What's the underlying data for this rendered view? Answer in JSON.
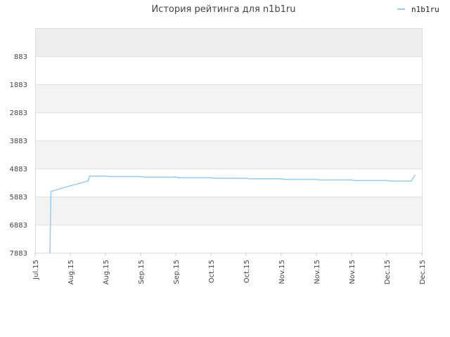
{
  "chart_data": {
    "type": "line",
    "title": "История рейтинга для n1b1ru",
    "xlabel": "",
    "ylabel": "",
    "y_inverted": true,
    "ylim": [
      7883,
      0
    ],
    "y_ticks": [
      "883",
      "1883",
      "2883",
      "3883",
      "4883",
      "5883",
      "6883",
      "7883"
    ],
    "y_tick_values": [
      883,
      1883,
      2883,
      3883,
      4883,
      5883,
      6883,
      7883
    ],
    "x_ticks": [
      "Jul.15",
      "Aug.15",
      "Aug.15",
      "Sep.15",
      "Sep.15",
      "Oct.15",
      "Oct.15",
      "Nov.15",
      "Nov.15",
      "Nov.15",
      "Dec.15",
      "Dec.15"
    ],
    "grid": true,
    "legend": {
      "position": "top-right"
    },
    "series": [
      {
        "name": "n1b1ru",
        "color": "#99ccee",
        "x": [
          0.42,
          0.45,
          1.0,
          1.5,
          1.55,
          2.0,
          2.1,
          3.0,
          3.1,
          4.0,
          4.1,
          5.0,
          5.1,
          6.0,
          6.1,
          7.0,
          7.1,
          8.0,
          8.1,
          9.0,
          9.1,
          10.0,
          10.1,
          10.7,
          10.8
        ],
        "values": [
          7883,
          5700,
          5500,
          5330,
          5150,
          5150,
          5170,
          5170,
          5190,
          5190,
          5210,
          5210,
          5230,
          5230,
          5250,
          5250,
          5270,
          5270,
          5290,
          5290,
          5310,
          5310,
          5330,
          5330,
          5120
        ]
      }
    ]
  }
}
